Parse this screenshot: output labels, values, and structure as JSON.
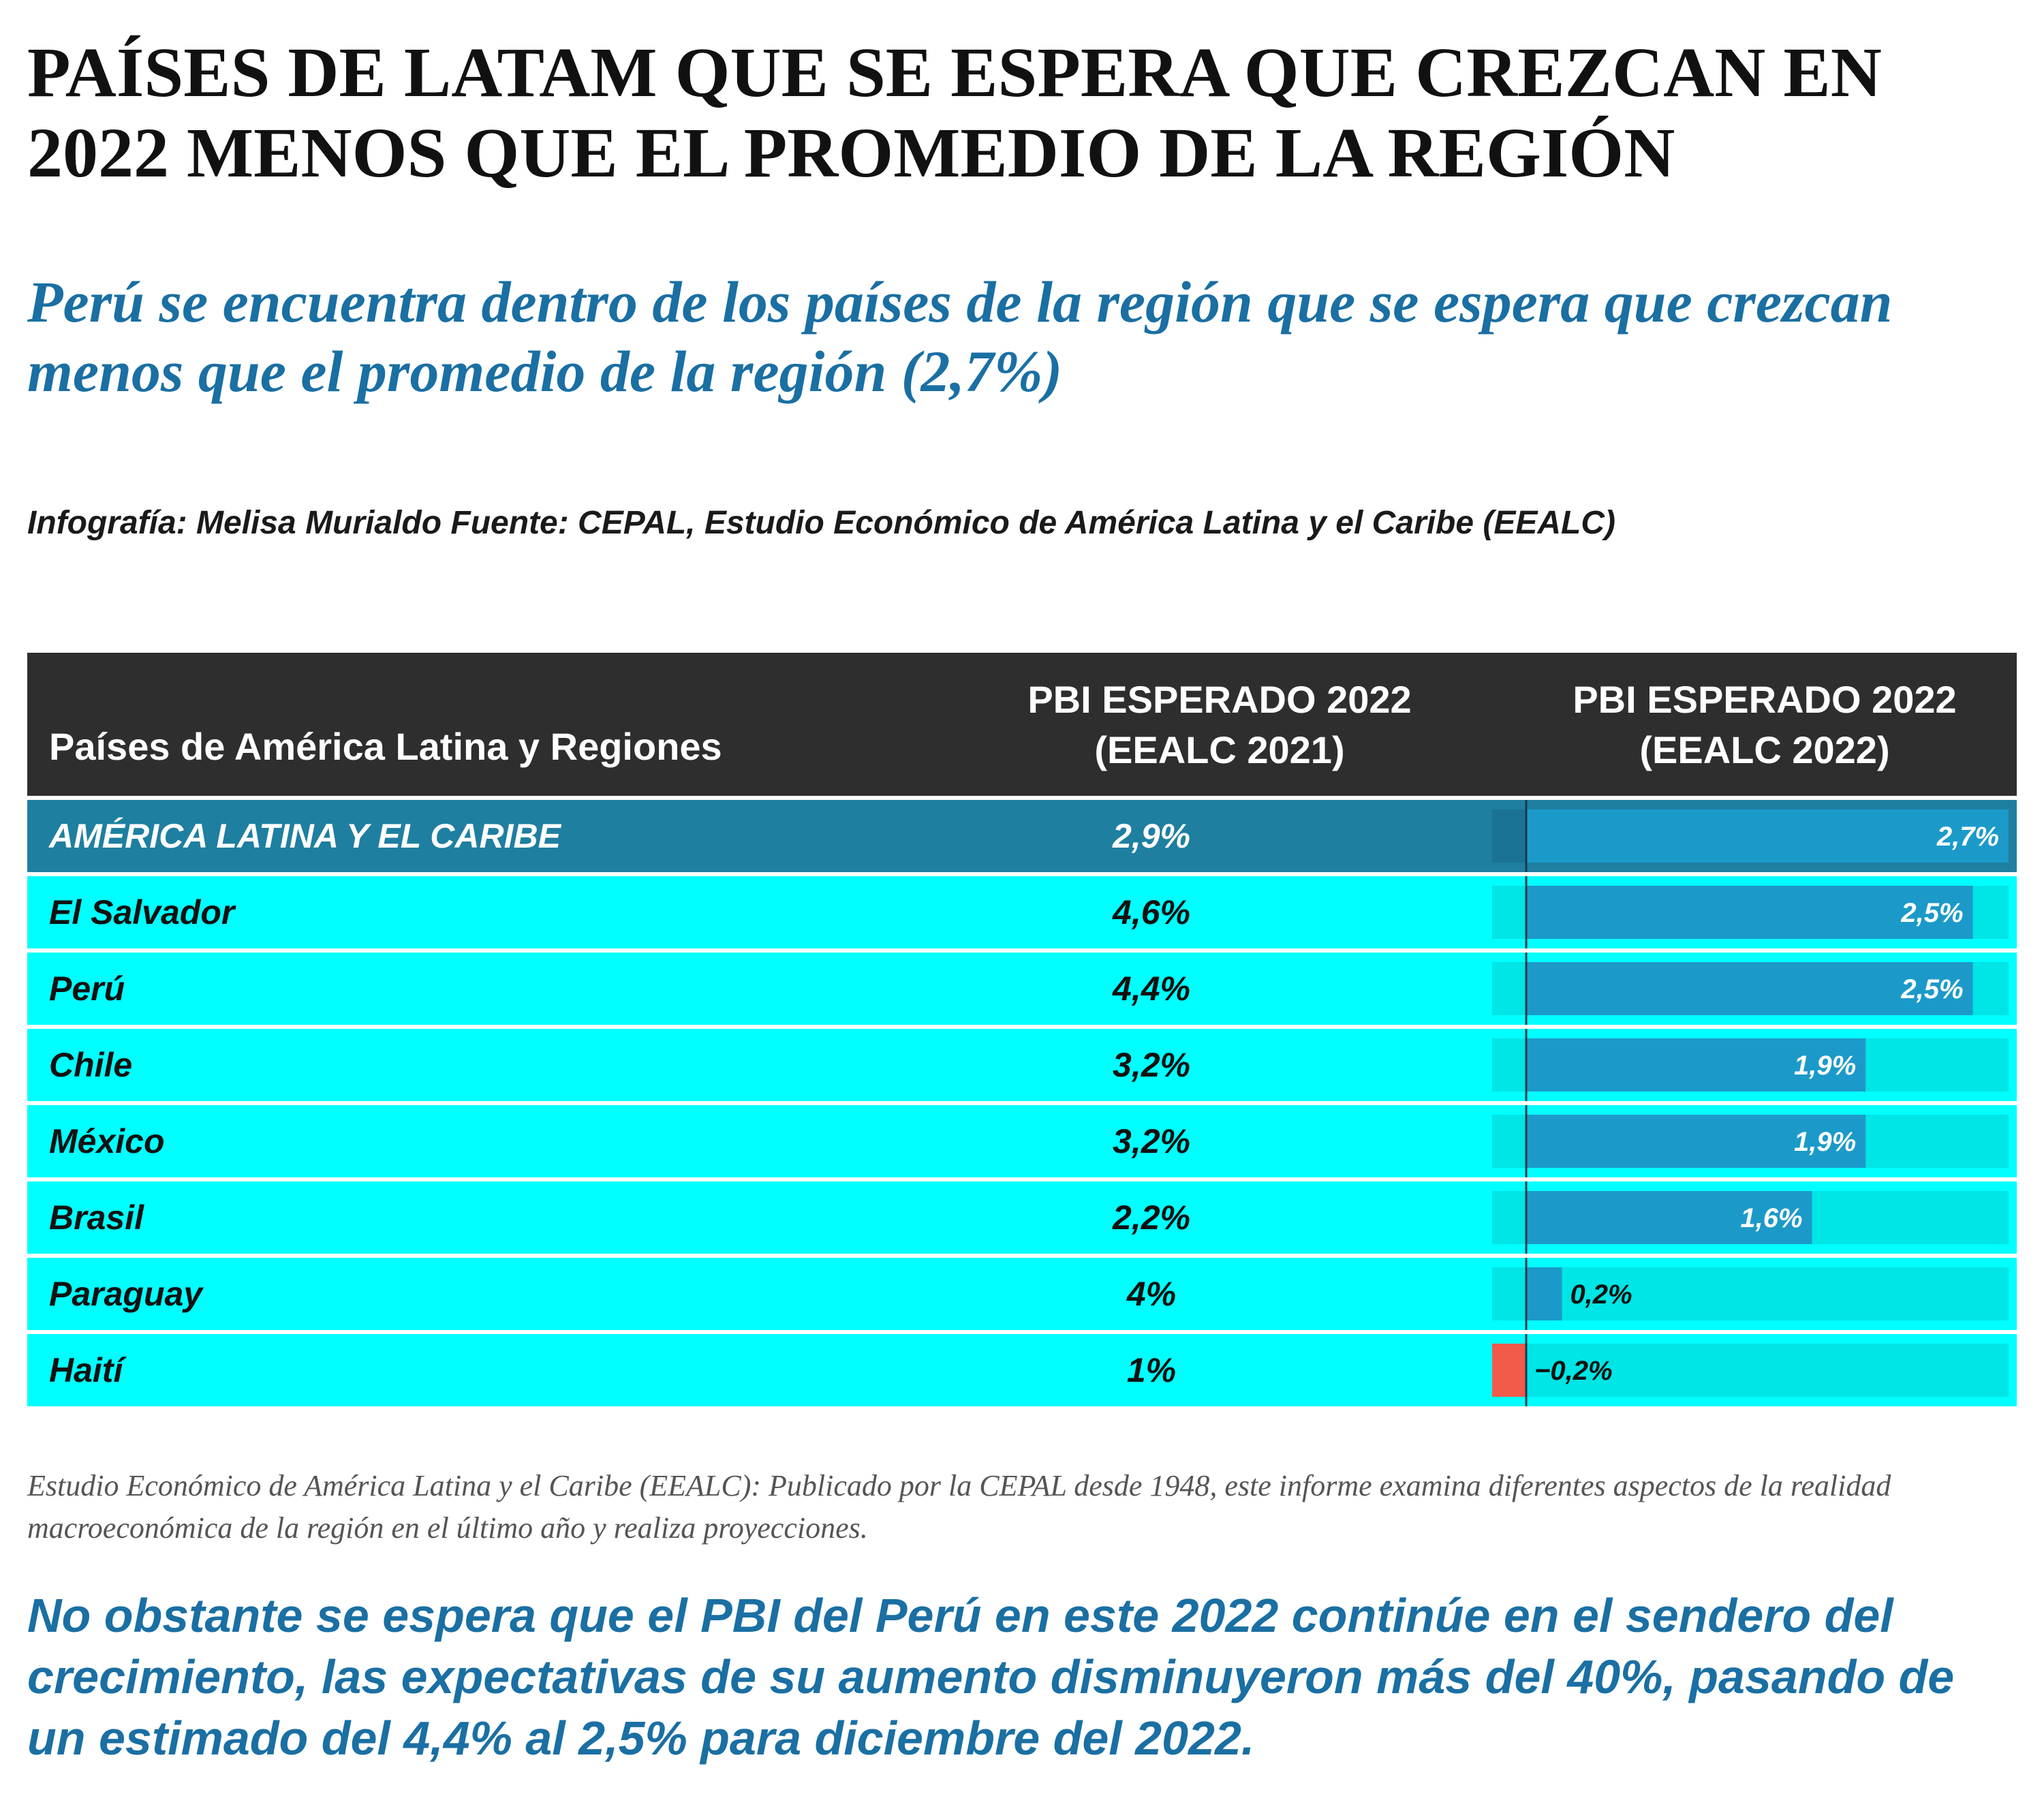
{
  "title": "PAÍSES DE LATAM QUE SE ESPERA QUE CREZCAN EN 2022 MENOS QUE EL PROMEDIO DE LA REGIÓN",
  "subtitle": "Perú se encuentra dentro de los países de la región que se espera que crezcan menos que el promedio de la región (2,7%)",
  "credit": "Infografía: Melisa Murialdo Fuente: CEPAL, Estudio Económico de América Latina y el Caribe (EEALC)",
  "table": {
    "header_country": "Países de América Latina y Regiones",
    "header_col1_line1": "PBI ESPERADO 2022",
    "header_col1_line2": "(EEALC 2021)",
    "header_col2_line1": "PBI ESPERADO 2022",
    "header_col2_line2": "(EEALC 2022)"
  },
  "chart_data": {
    "type": "table",
    "columns": [
      "Países de América Latina y Regiones",
      "PBI ESPERADO 2022 (EEALC 2021)",
      "PBI ESPERADO 2022 (EEALC 2022)"
    ],
    "rows": [
      {
        "country": "AMÉRICA LATINA Y EL CARIBE",
        "v2021": "2,9%",
        "v2022": 2.7,
        "v2022_label": "2,7%",
        "is_region": true
      },
      {
        "country": "El Salvador",
        "v2021": "4,6%",
        "v2022": 2.5,
        "v2022_label": "2,5%",
        "is_region": false
      },
      {
        "country": "Perú",
        "v2021": "4,4%",
        "v2022": 2.5,
        "v2022_label": "2,5%",
        "is_region": false
      },
      {
        "country": "Chile",
        "v2021": "3,2%",
        "v2022": 1.9,
        "v2022_label": "1,9%",
        "is_region": false
      },
      {
        "country": "México",
        "v2021": "3,2%",
        "v2022": 1.9,
        "v2022_label": "1,9%",
        "is_region": false
      },
      {
        "country": "Brasil",
        "v2021": "2,2%",
        "v2022": 1.6,
        "v2022_label": "1,6%",
        "is_region": false
      },
      {
        "country": "Paraguay",
        "v2021": "4%",
        "v2022": 0.2,
        "v2022_label": "0,2%",
        "is_region": false
      },
      {
        "country": "Haití",
        "v2021": "1%",
        "v2022": -0.2,
        "v2022_label": "−0,2%",
        "is_region": false
      }
    ],
    "bar_range": [
      -0.2,
      2.7
    ],
    "colors": {
      "positive_bar": "#1b9ac9",
      "negative_bar": "#f25a4a",
      "row_background": "#00ffff",
      "region_row_background": "#1e7fa0",
      "bar_track": "#00e5e5",
      "header_background": "#2e2e2e"
    }
  },
  "footnote": "Estudio Económico de América Latina y el Caribe (EEALC): Publicado por la CEPAL desde 1948, este informe examina diferentes aspectos de la realidad macroeconómica de la región en el último año y realiza proyecciones.",
  "conclusion": "No obstante se espera que el PBI del Perú en este 2022 continúe en el sendero del crecimiento, las expectativas de su aumento disminuyeron más del 40%, pasando de un estimado del 4,4% al 2,5% para diciembre del 2022."
}
